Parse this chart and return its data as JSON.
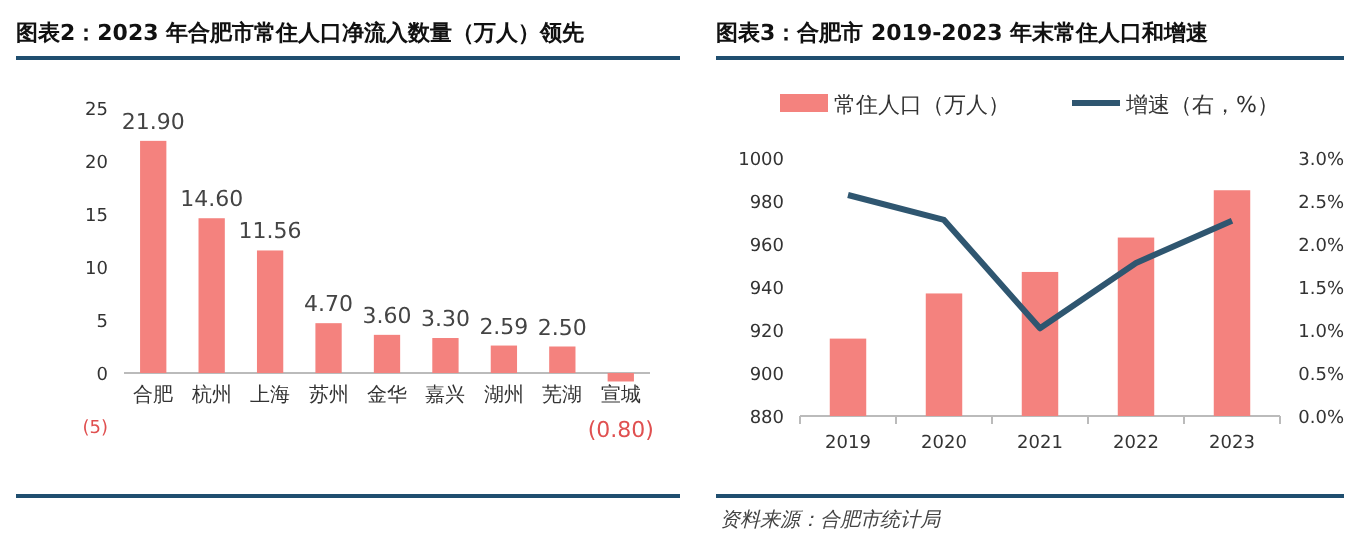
{
  "chart_data": [
    {
      "type": "bar",
      "title": "图表2：2023 年合肥市常住人口净流入数量（万人）领先",
      "categories": [
        "合肥",
        "杭州",
        "上海",
        "苏州",
        "金华",
        "嘉兴",
        "湖州",
        "芜湖",
        "宣城"
      ],
      "values": [
        21.9,
        14.6,
        11.56,
        4.7,
        3.6,
        3.3,
        2.59,
        2.5,
        -0.8
      ],
      "value_labels": [
        "21.90",
        "14.60",
        "11.56",
        "4.70",
        "3.60",
        "3.30",
        "2.59",
        "2.50",
        "(0.80)"
      ],
      "color": "#f4827e",
      "ylim": [
        -5,
        25
      ],
      "yticks": [
        {
          "value": -5,
          "label": "(5)"
        },
        0,
        5,
        10,
        15,
        20,
        25
      ],
      "grid": false,
      "legend": false
    },
    {
      "type": "bar",
      "title": "图表3：合肥市 2019-2023 年末常住人口和增速",
      "categories": [
        "2019",
        "2020",
        "2021",
        "2022",
        "2023"
      ],
      "series": [
        {
          "name": "常住人口（万人）",
          "type": "bar",
          "color": "#f4827e",
          "values": [
            916,
            937,
            947,
            963,
            985
          ]
        },
        {
          "name": "增速（右，%）",
          "type": "line",
          "axis": "y2",
          "color": "#2f5670",
          "values": [
            2.57,
            2.28,
            1.02,
            1.78,
            2.27
          ]
        }
      ],
      "ylim": [
        880,
        1000
      ],
      "yticks": [
        880,
        900,
        920,
        940,
        960,
        980,
        1000
      ],
      "y2lim": [
        0,
        3
      ],
      "y2ticks": [
        {
          "value": 0,
          "label": "0.0%"
        },
        {
          "value": 0.5,
          "label": "0.5%"
        },
        {
          "value": 1,
          "label": "1.0%"
        },
        {
          "value": 1.5,
          "label": "1.5%"
        },
        {
          "value": 2,
          "label": "2.0%"
        },
        {
          "value": 2.5,
          "label": "2.5%"
        },
        {
          "value": 3,
          "label": "3.0%"
        }
      ],
      "legend": "top",
      "grid": false,
      "marker": "none",
      "annotations": [
        "资料来源：合肥市统计局"
      ]
    }
  ]
}
